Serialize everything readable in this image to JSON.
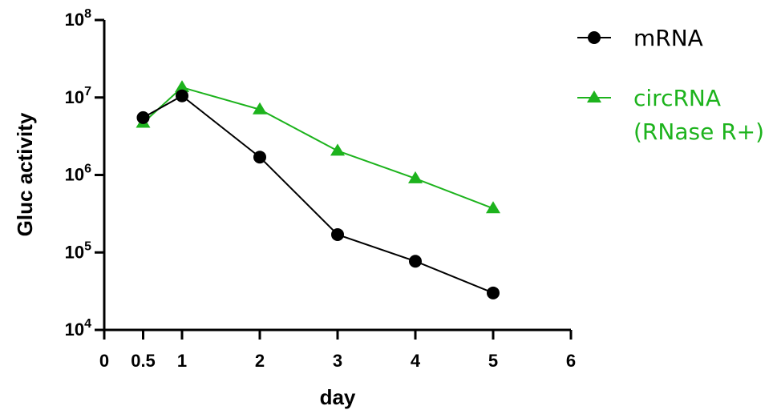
{
  "chart_data": {
    "type": "line",
    "title": "",
    "xlabel": "day",
    "ylabel": "Gluc activity",
    "x_ticks": [
      {
        "value": 0,
        "label": "0"
      },
      {
        "value": 0.5,
        "label": "0.5"
      },
      {
        "value": 1,
        "label": "1"
      },
      {
        "value": 2,
        "label": "2"
      },
      {
        "value": 3,
        "label": "3"
      },
      {
        "value": 4,
        "label": "4"
      },
      {
        "value": 5,
        "label": "5"
      },
      {
        "value": 6,
        "label": "6"
      }
    ],
    "y_ticks": [
      {
        "exp": 4,
        "base": "10",
        "sup": "4"
      },
      {
        "exp": 5,
        "base": "10",
        "sup": "5"
      },
      {
        "exp": 6,
        "base": "10",
        "sup": "6"
      },
      {
        "exp": 7,
        "base": "10",
        "sup": "7"
      },
      {
        "exp": 8,
        "base": "10",
        "sup": "8"
      }
    ],
    "xlim": [
      0,
      6
    ],
    "ylim": [
      10000,
      100000000
    ],
    "yscale": "log",
    "legend_position": "top-right",
    "series": [
      {
        "name": "mRNA",
        "color": "#000000",
        "marker": "circle",
        "x": [
          0.5,
          1,
          2,
          3,
          4,
          5
        ],
        "y": [
          5500000,
          10500000,
          1700000,
          170000,
          77000,
          30000
        ]
      },
      {
        "name": "circRNA (RNase R+)",
        "legend_lines": [
          "circRNA",
          "(RNase R+)"
        ],
        "color": "#1db31d",
        "marker": "triangle",
        "x": [
          0.5,
          1,
          2,
          3,
          4,
          5
        ],
        "y": [
          4700000,
          13500000,
          7000000,
          2050000,
          900000,
          370000
        ]
      }
    ]
  }
}
